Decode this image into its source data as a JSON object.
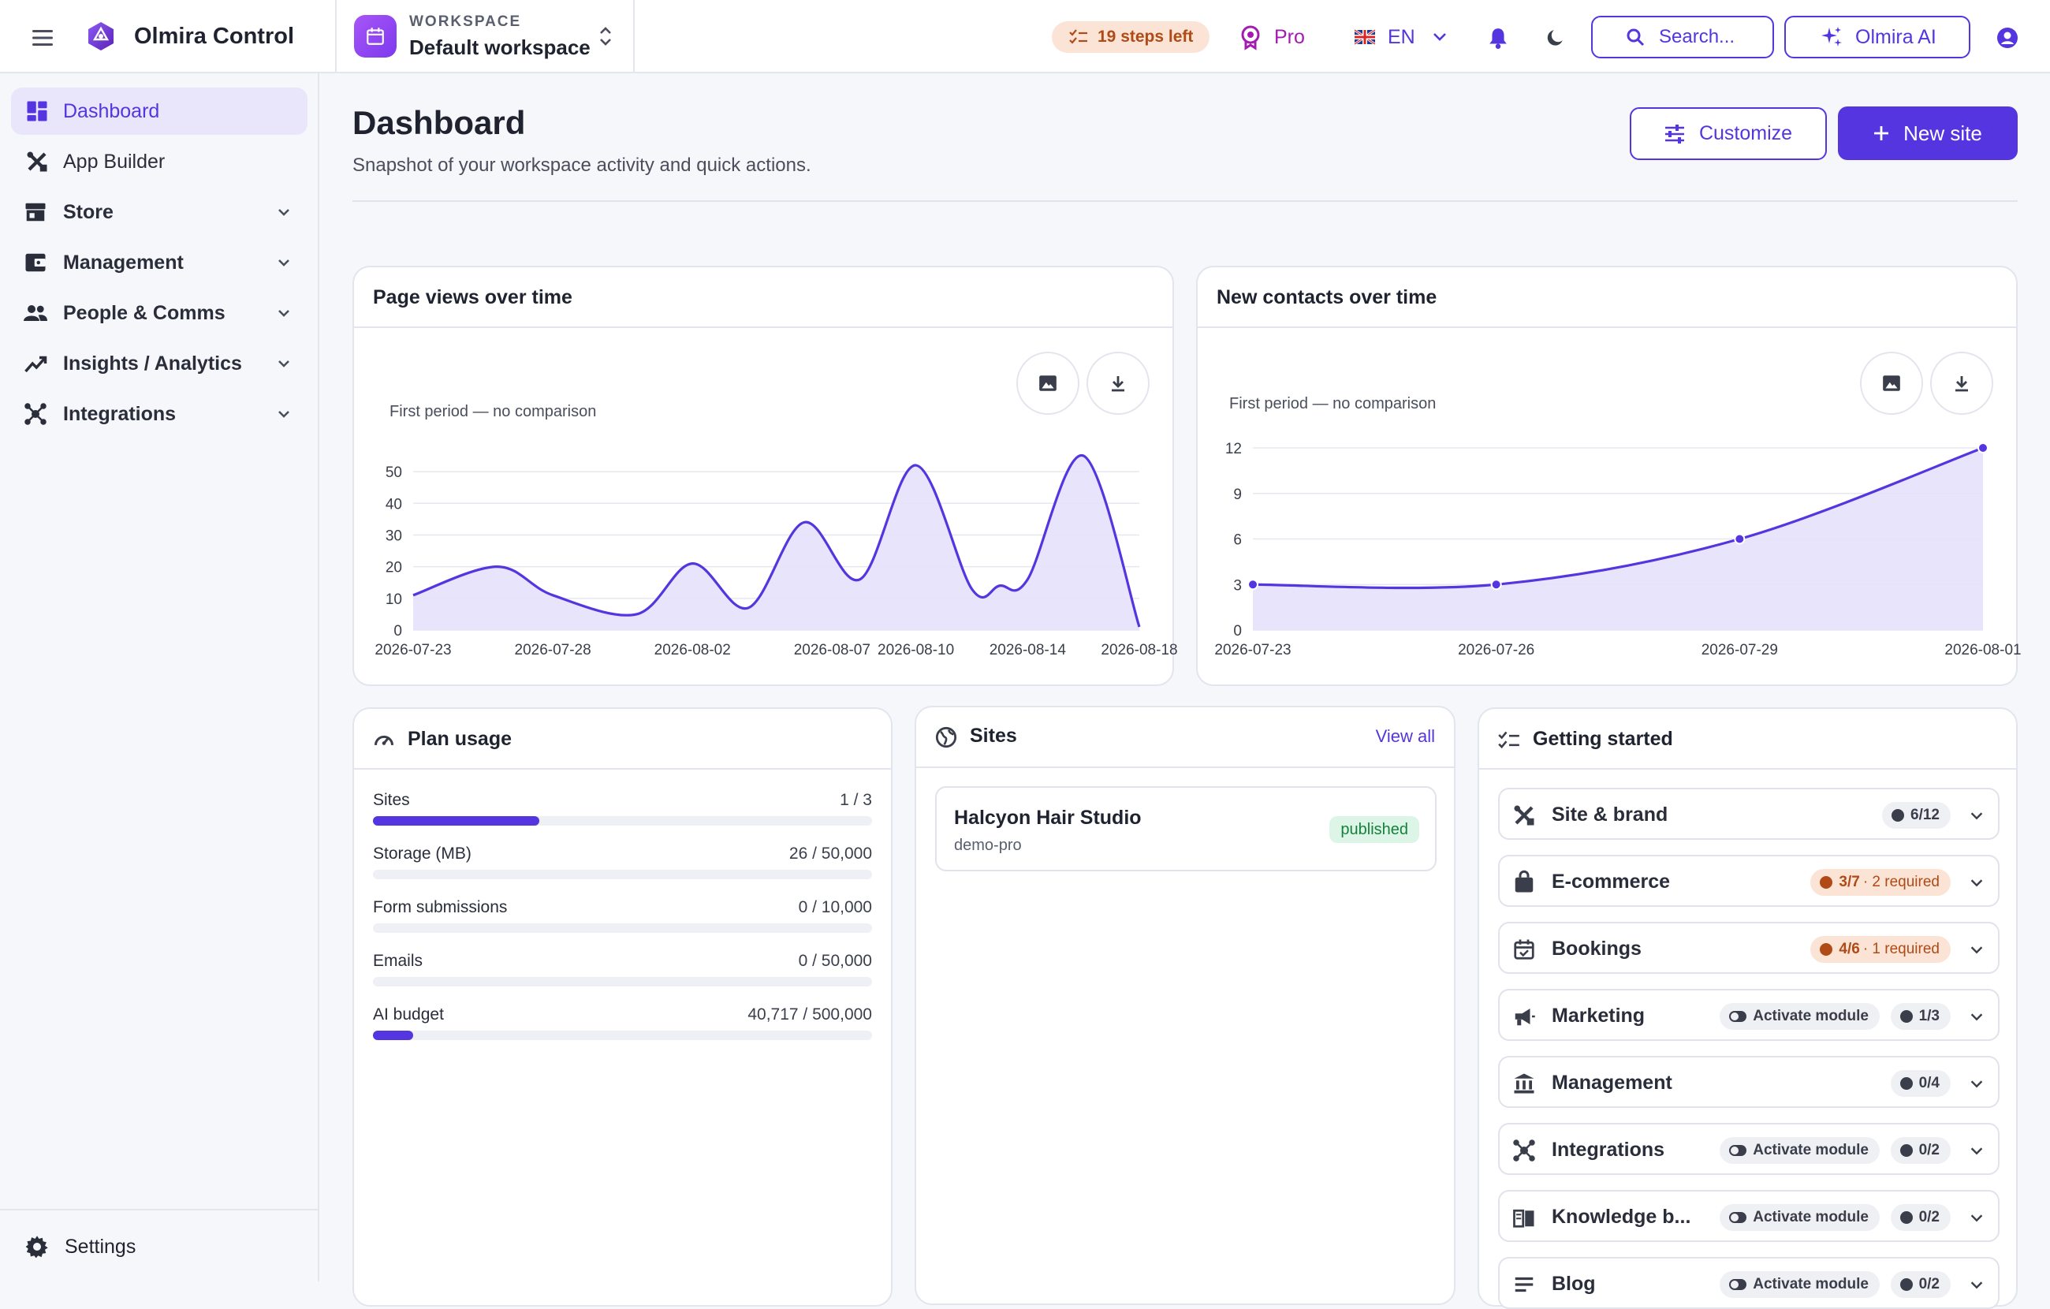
{
  "app": {
    "name": "Olmira Control"
  },
  "workspace": {
    "label": "WORKSPACE",
    "name": "Default workspace"
  },
  "topbar": {
    "steps_left": "19 steps left",
    "plan": "Pro",
    "language": "EN",
    "search_placeholder": "Search...",
    "ai_label": "Olmira AI"
  },
  "sidebar": {
    "items": [
      {
        "label": "Dashboard",
        "icon": "dashboard-icon",
        "active": true
      },
      {
        "label": "App Builder",
        "icon": "tools-icon"
      },
      {
        "label": "Store",
        "icon": "store-icon",
        "expandable": true
      },
      {
        "label": "Management",
        "icon": "wallet-icon",
        "expandable": true
      },
      {
        "label": "People & Comms",
        "icon": "people-icon",
        "expandable": true
      },
      {
        "label": "Insights / Analytics",
        "icon": "trend-icon",
        "expandable": true
      },
      {
        "label": "Integrations",
        "icon": "hub-icon",
        "expandable": true
      }
    ],
    "settings_label": "Settings"
  },
  "page": {
    "title": "Dashboard",
    "subtitle": "Snapshot of your workspace activity and quick actions.",
    "customize_label": "Customize",
    "new_site_label": "New site"
  },
  "colors": {
    "accent": "#5435e0",
    "accent_soft": "#e9e5fb",
    "area_fill": "#e6e1fb"
  },
  "chart_data": [
    {
      "type": "area",
      "title": "Page views over time",
      "note": "First period — no comparison",
      "x": [
        "2026-07-23",
        "2026-07-26",
        "2026-07-28",
        "2026-07-31",
        "2026-08-02",
        "2026-08-04",
        "2026-08-06",
        "2026-08-08",
        "2026-08-10",
        "2026-08-12",
        "2026-08-13",
        "2026-08-14",
        "2026-08-16",
        "2026-08-18"
      ],
      "x_ticks": [
        "2026-07-23",
        "2026-07-28",
        "2026-08-02",
        "2026-08-07",
        "2026-08-10",
        "2026-08-14",
        "2026-08-18"
      ],
      "values": [
        11,
        20,
        11,
        5,
        21,
        7,
        34,
        16,
        52,
        13,
        14,
        16,
        55,
        1
      ],
      "ylim": [
        0,
        55
      ],
      "y_ticks": [
        0,
        10,
        20,
        30,
        40,
        50
      ],
      "grid": true,
      "markers": false
    },
    {
      "type": "area",
      "title": "New contacts over time",
      "note": "First period — no comparison",
      "x": [
        "2026-07-23",
        "2026-07-26",
        "2026-07-29",
        "2026-08-01"
      ],
      "x_ticks": [
        "2026-07-23",
        "2026-07-26",
        "2026-07-29",
        "2026-08-01"
      ],
      "values": [
        3,
        3,
        6,
        12
      ],
      "ylim": [
        0,
        12
      ],
      "y_ticks": [
        0,
        3,
        6,
        9,
        12
      ],
      "grid": true,
      "markers": true
    }
  ],
  "plan_usage": {
    "title": "Plan usage",
    "items": [
      {
        "label": "Sites",
        "value": "1 / 3",
        "fraction": 0.333
      },
      {
        "label": "Storage (MB)",
        "value": "26 / 50,000",
        "fraction": 0.0005
      },
      {
        "label": "Form submissions",
        "value": "0 / 10,000",
        "fraction": 0
      },
      {
        "label": "Emails",
        "value": "0 / 50,000",
        "fraction": 0
      },
      {
        "label": "AI budget",
        "value": "40,717 / 500,000",
        "fraction": 0.081
      }
    ]
  },
  "sites": {
    "title": "Sites",
    "view_all": "View all",
    "items": [
      {
        "name": "Halcyon Hair Studio",
        "slug": "demo-pro",
        "status": "published"
      }
    ]
  },
  "getting_started": {
    "title": "Getting started",
    "activate_label": "Activate module",
    "required_suffix": "required",
    "items": [
      {
        "label": "Site & brand",
        "icon": "tools-icon",
        "progress": "6/12",
        "warn": false,
        "activate": false
      },
      {
        "label": "E-commerce",
        "icon": "bag-icon",
        "progress": "3/7",
        "warn": true,
        "required": "· 2 required",
        "activate": false
      },
      {
        "label": "Bookings",
        "icon": "calendar-icon",
        "progress": "4/6",
        "warn": true,
        "required": "· 1 required",
        "activate": false
      },
      {
        "label": "Marketing",
        "icon": "megaphone-icon",
        "progress": "1/3",
        "warn": false,
        "activate": true
      },
      {
        "label": "Management",
        "icon": "bank-icon",
        "progress": "0/4",
        "warn": false,
        "activate": false
      },
      {
        "label": "Integrations",
        "icon": "hub-icon",
        "progress": "0/2",
        "warn": false,
        "activate": true
      },
      {
        "label": "Knowledge b...",
        "icon": "book-icon",
        "progress": "0/2",
        "warn": false,
        "activate": true
      },
      {
        "label": "Blog",
        "icon": "list-icon",
        "progress": "0/2",
        "warn": false,
        "activate": true
      }
    ]
  }
}
